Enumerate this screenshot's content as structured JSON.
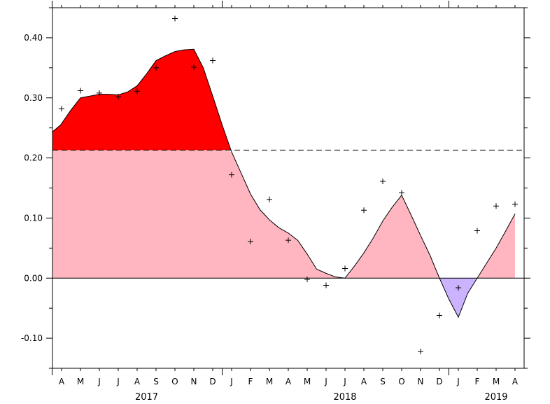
{
  "chart_data": {
    "type": "area",
    "title": "",
    "xlabel": "",
    "ylabel": "",
    "ylim": [
      -0.15,
      0.45
    ],
    "yticks": [
      -0.1,
      0.0,
      0.1,
      0.2,
      0.3,
      0.4
    ],
    "ytick_labels": [
      "-0.10",
      "0.00",
      "0.10",
      "0.20",
      "0.30",
      "0.40"
    ],
    "threshold": 0.213,
    "grid": false,
    "legend": "none",
    "month_labels": [
      "A",
      "M",
      "J",
      "J",
      "A",
      "S",
      "O",
      "N",
      "D",
      "J",
      "F",
      "M",
      "A",
      "M",
      "J",
      "J",
      "A",
      "S",
      "O",
      "N",
      "D",
      "J",
      "F",
      "M",
      "A"
    ],
    "year_labels": [
      {
        "text": "2017",
        "month_index": 4.5
      },
      {
        "text": "2018",
        "month_index": 15
      },
      {
        "text": "2019",
        "month_index": 23
      }
    ],
    "smoothed_series": {
      "x": [
        -0.5,
        -0.05,
        0.5,
        1,
        1.5,
        2,
        2.5,
        3,
        3.5,
        4,
        4.5,
        5,
        5.5,
        6,
        6.5,
        7,
        7.5,
        8,
        8.5,
        9,
        9.5,
        10,
        10.5,
        11,
        11.5,
        12,
        12.5,
        13,
        13.5,
        14,
        14.5,
        15,
        15.5,
        16,
        16.5,
        17,
        17.5,
        18,
        18.5,
        19,
        19.5,
        20,
        20.5,
        21,
        21.5,
        22,
        22.5,
        23,
        23.5,
        24
      ],
      "values": [
        0.243,
        0.255,
        0.28,
        0.3,
        0.303,
        0.306,
        0.306,
        0.305,
        0.31,
        0.32,
        0.34,
        0.362,
        0.37,
        0.377,
        0.38,
        0.381,
        0.35,
        0.303,
        0.255,
        0.21,
        0.175,
        0.14,
        0.114,
        0.097,
        0.084,
        0.075,
        0.063,
        0.04,
        0.015,
        0.008,
        0.002,
        0.0,
        0.02,
        0.042,
        0.067,
        0.095,
        0.118,
        0.138,
        0.105,
        0.071,
        0.038,
        0.0,
        -0.035,
        -0.065,
        -0.025,
        0.0,
        0.025,
        0.05,
        0.078,
        0.107
      ]
    },
    "monthly_points": {
      "x": [
        0,
        1,
        2,
        3,
        4,
        5,
        6,
        7,
        8,
        9,
        10,
        11,
        12,
        13,
        14,
        15,
        16,
        17,
        18,
        19,
        20,
        21,
        22,
        23,
        24
      ],
      "values": [
        0.282,
        0.312,
        0.308,
        0.302,
        0.311,
        0.35,
        0.432,
        0.351,
        0.362,
        0.172,
        0.061,
        0.131,
        0.063,
        -0.002,
        -0.012,
        0.016,
        0.113,
        0.161,
        0.142,
        -0.122,
        -0.062,
        -0.016,
        0.079,
        0.12,
        0.123
      ]
    },
    "colors": {
      "above_threshold": "#ff0000",
      "positive": "#ffb6c1",
      "negative": "#ccb3ff",
      "line": "#000000",
      "marker": "#000000"
    }
  }
}
